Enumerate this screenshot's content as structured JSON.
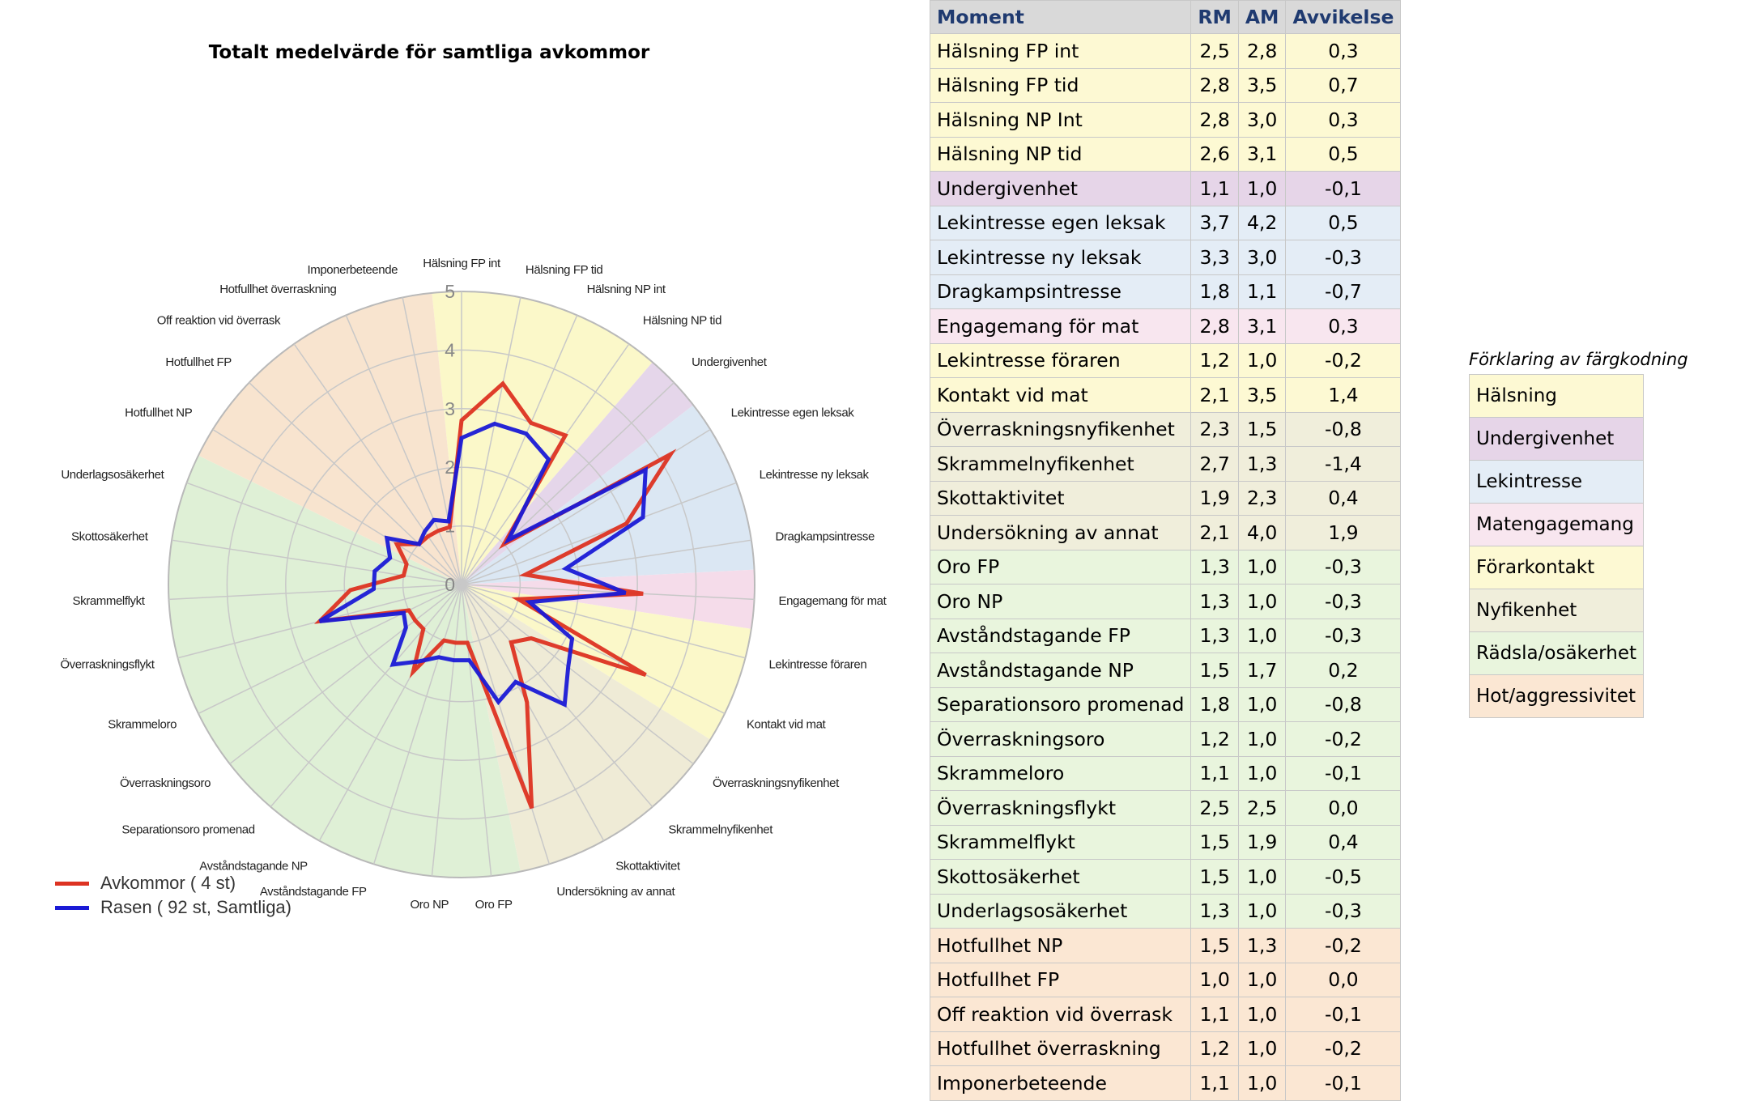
{
  "chart_data": {
    "type": "radar",
    "title": "Totalt medelvärde för samtliga avkommor",
    "rlim": [
      0,
      5
    ],
    "ticks": [
      "0",
      "1",
      "2",
      "3",
      "4",
      "5"
    ],
    "grid": true,
    "legend_position": "bottom-left",
    "categories": [
      "Hälsning FP int",
      "Hälsning FP tid",
      "Hälsning NP int",
      "Hälsning NP tid",
      "Undergivenhet",
      "Lekintresse egen leksak",
      "Lekintresse ny leksak",
      "Dragkampsintresse",
      "Engagemang för mat",
      "Lekintresse föraren",
      "Kontakt vid mat",
      "Överraskningsnyfikenhet",
      "Skrammelnyfikenhet",
      "Skottaktivitet",
      "Undersökning av annat",
      "Oro FP",
      "Oro NP",
      "Avståndstagande FP",
      "Avståndstagande NP",
      "Separationsoro promenad",
      "Överraskningsoro",
      "Skrammeloro",
      "Överraskningsflykt",
      "Skrammelflykt",
      "Skottosäkerhet",
      "Underlagsosäkerhet",
      "Hotfullhet NP",
      "Hotfullhet FP",
      "Off reaktion vid överrask",
      "Hotfullhet överraskning",
      "Imponerbeteende"
    ],
    "sector_colors": [
      {
        "group": "Hälsning",
        "start": 0,
        "count": 4,
        "color": "#fbf8c9"
      },
      {
        "group": "Undergivenhet",
        "start": 4,
        "count": 1,
        "color": "#e5d6ea"
      },
      {
        "group": "Lekintresse",
        "start": 5,
        "count": 3,
        "color": "#dbe7f3"
      },
      {
        "group": "Matengagemang",
        "start": 8,
        "count": 1,
        "color": "#f5dcea"
      },
      {
        "group": "Förarkontakt",
        "start": 9,
        "count": 2,
        "color": "#fbf8c9"
      },
      {
        "group": "Nyfikenhet",
        "start": 11,
        "count": 4,
        "color": "#efebd6"
      },
      {
        "group": "Rädsla/osäkerhet",
        "start": 15,
        "count": 11,
        "color": "#dff0d6"
      },
      {
        "group": "Hot/aggressivitet",
        "start": 26,
        "count": 5,
        "color": "#f8e4cf"
      }
    ],
    "series": [
      {
        "name": "Avkommor ( 4 st)",
        "color": "#dd3322",
        "values": [
          2.8,
          3.5,
          3.0,
          3.1,
          1.0,
          4.2,
          3.0,
          1.1,
          3.1,
          1.0,
          3.5,
          1.5,
          1.3,
          2.3,
          4.0,
          1.0,
          1.0,
          1.0,
          1.7,
          1.0,
          1.0,
          1.0,
          2.5,
          1.9,
          1.0,
          1.0,
          1.3,
          1.0,
          1.0,
          1.0,
          1.0
        ]
      },
      {
        "name": "Rasen ( 92 st, Samtliga)",
        "color": "#1a1ad6",
        "values": [
          2.5,
          2.8,
          2.8,
          2.6,
          1.1,
          3.7,
          3.3,
          1.8,
          2.8,
          1.2,
          2.1,
          2.3,
          2.7,
          1.9,
          2.1,
          1.3,
          1.3,
          1.3,
          1.5,
          1.8,
          1.2,
          1.1,
          2.5,
          1.5,
          1.5,
          1.3,
          1.5,
          1.0,
          1.1,
          1.2,
          1.1
        ]
      }
    ]
  },
  "table": {
    "headers": {
      "moment": "Moment",
      "rm": "RM",
      "am": "AM",
      "dev": "Avvikelse"
    },
    "rows": [
      {
        "moment": "Hälsning FP int",
        "rm": "2,5",
        "am": "2,8",
        "dev": "0,3",
        "color": "#fdf9d3"
      },
      {
        "moment": "Hälsning FP tid",
        "rm": "2,8",
        "am": "3,5",
        "dev": "0,7",
        "color": "#fdf9d3"
      },
      {
        "moment": "Hälsning NP Int",
        "rm": "2,8",
        "am": "3,0",
        "dev": "0,3",
        "color": "#fdf9d3"
      },
      {
        "moment": "Hälsning NP tid",
        "rm": "2,6",
        "am": "3,1",
        "dev": "0,5",
        "color": "#fdf9d3"
      },
      {
        "moment": "Undergivenhet",
        "rm": "1,1",
        "am": "1,0",
        "dev": "-0,1",
        "color": "#e6d5e8"
      },
      {
        "moment": "Lekintresse egen leksak",
        "rm": "3,7",
        "am": "4,2",
        "dev": "0,5",
        "color": "#e4edf6"
      },
      {
        "moment": "Lekintresse ny leksak",
        "rm": "3,3",
        "am": "3,0",
        "dev": "-0,3",
        "color": "#e4edf6"
      },
      {
        "moment": "Dragkampsintresse",
        "rm": "1,8",
        "am": "1,1",
        "dev": "-0,7",
        "color": "#e4edf6"
      },
      {
        "moment": "Engagemang för mat",
        "rm": "2,8",
        "am": "3,1",
        "dev": "0,3",
        "color": "#f8e6ef"
      },
      {
        "moment": "Lekintresse föraren",
        "rm": "1,2",
        "am": "1,0",
        "dev": "-0,2",
        "color": "#fdf9d3"
      },
      {
        "moment": "Kontakt vid mat",
        "rm": "2,1",
        "am": "3,5",
        "dev": "1,4",
        "color": "#fdf9d3"
      },
      {
        "moment": "Överraskningsnyfikenhet",
        "rm": "2,3",
        "am": "1,5",
        "dev": "-0,8",
        "color": "#f0eedb"
      },
      {
        "moment": "Skrammelnyfikenhet",
        "rm": "2,7",
        "am": "1,3",
        "dev": "-1,4",
        "color": "#f0eedb"
      },
      {
        "moment": "Skottaktivitet",
        "rm": "1,9",
        "am": "2,3",
        "dev": "0,4",
        "color": "#f0eedb"
      },
      {
        "moment": "Undersökning av annat",
        "rm": "2,1",
        "am": "4,0",
        "dev": "1,9",
        "color": "#f0eedb"
      },
      {
        "moment": "Oro FP",
        "rm": "1,3",
        "am": "1,0",
        "dev": "-0,3",
        "color": "#e9f5dd"
      },
      {
        "moment": "Oro NP",
        "rm": "1,3",
        "am": "1,0",
        "dev": "-0,3",
        "color": "#e9f5dd"
      },
      {
        "moment": "Avståndstagande FP",
        "rm": "1,3",
        "am": "1,0",
        "dev": "-0,3",
        "color": "#e9f5dd"
      },
      {
        "moment": "Avståndstagande NP",
        "rm": "1,5",
        "am": "1,7",
        "dev": "0,2",
        "color": "#e9f5dd"
      },
      {
        "moment": "Separationsoro promenad",
        "rm": "1,8",
        "am": "1,0",
        "dev": "-0,8",
        "color": "#e9f5dd"
      },
      {
        "moment": "Överraskningsoro",
        "rm": "1,2",
        "am": "1,0",
        "dev": "-0,2",
        "color": "#e9f5dd"
      },
      {
        "moment": "Skrammeloro",
        "rm": "1,1",
        "am": "1,0",
        "dev": "-0,1",
        "color": "#e9f5dd"
      },
      {
        "moment": "Överraskningsflykt",
        "rm": "2,5",
        "am": "2,5",
        "dev": "0,0",
        "color": "#e9f5dd"
      },
      {
        "moment": "Skrammelflykt",
        "rm": "1,5",
        "am": "1,9",
        "dev": "0,4",
        "color": "#e9f5dd"
      },
      {
        "moment": "Skottosäkerhet",
        "rm": "1,5",
        "am": "1,0",
        "dev": "-0,5",
        "color": "#e9f5dd"
      },
      {
        "moment": "Underlagsosäkerhet",
        "rm": "1,3",
        "am": "1,0",
        "dev": "-0,3",
        "color": "#e9f5dd"
      },
      {
        "moment": "Hotfullhet NP",
        "rm": "1,5",
        "am": "1,3",
        "dev": "-0,2",
        "color": "#fbe7d3"
      },
      {
        "moment": "Hotfullhet FP",
        "rm": "1,0",
        "am": "1,0",
        "dev": "0,0",
        "color": "#fbe7d3"
      },
      {
        "moment": "Off reaktion vid överrask",
        "rm": "1,1",
        "am": "1,0",
        "dev": "-0,1",
        "color": "#fbe7d3"
      },
      {
        "moment": "Hotfullhet överraskning",
        "rm": "1,2",
        "am": "1,0",
        "dev": "-0,2",
        "color": "#fbe7d3"
      },
      {
        "moment": "Imponerbeteende",
        "rm": "1,1",
        "am": "1,0",
        "dev": "-0,1",
        "color": "#fbe7d3"
      }
    ]
  },
  "color_legend": {
    "title": "Förklaring av färgkodning",
    "items": [
      {
        "label": "Hälsning",
        "color": "#fdf9d3"
      },
      {
        "label": "Undergivenhet",
        "color": "#e6d5e8"
      },
      {
        "label": "Lekintresse",
        "color": "#e4edf6"
      },
      {
        "label": "Matengagemang",
        "color": "#f8e6ef"
      },
      {
        "label": "Förarkontakt",
        "color": "#fdf9d3"
      },
      {
        "label": "Nyfikenhet",
        "color": "#f0eedb"
      },
      {
        "label": "Rädsla/osäkerhet",
        "color": "#e9f5dd"
      },
      {
        "label": "Hot/aggressivitet",
        "color": "#fbe7d3"
      }
    ]
  }
}
